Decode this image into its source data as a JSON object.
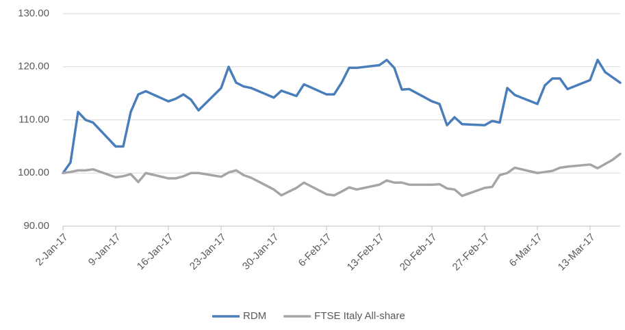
{
  "chart_data": {
    "type": "line",
    "x": [
      "2017-01-02",
      "2017-01-03",
      "2017-01-04",
      "2017-01-05",
      "2017-01-06",
      "2017-01-09",
      "2017-01-10",
      "2017-01-11",
      "2017-01-12",
      "2017-01-13",
      "2017-01-16",
      "2017-01-17",
      "2017-01-18",
      "2017-01-19",
      "2017-01-20",
      "2017-01-23",
      "2017-01-24",
      "2017-01-25",
      "2017-01-26",
      "2017-01-27",
      "2017-01-30",
      "2017-01-31",
      "2017-02-01",
      "2017-02-02",
      "2017-02-03",
      "2017-02-06",
      "2017-02-07",
      "2017-02-08",
      "2017-02-09",
      "2017-02-10",
      "2017-02-13",
      "2017-02-14",
      "2017-02-15",
      "2017-02-16",
      "2017-02-17",
      "2017-02-20",
      "2017-02-21",
      "2017-02-22",
      "2017-02-23",
      "2017-02-24",
      "2017-02-27",
      "2017-02-28",
      "2017-03-01",
      "2017-03-02",
      "2017-03-03",
      "2017-03-06",
      "2017-03-07",
      "2017-03-08",
      "2017-03-09",
      "2017-03-10",
      "2017-03-13",
      "2017-03-14",
      "2017-03-15",
      "2017-03-16",
      "2017-03-17"
    ],
    "series": [
      {
        "name": "RDM",
        "color": "#4a7ebb",
        "values": [
          100,
          102,
          111.5,
          110,
          109.5,
          105,
          105,
          111.5,
          114.8,
          115.4,
          113.5,
          114,
          114.8,
          113.8,
          111.8,
          116,
          120,
          117,
          116.3,
          116,
          114.2,
          115.5,
          115,
          114.5,
          116.7,
          114.8,
          114.8,
          117,
          119.8,
          119.8,
          120.3,
          121.3,
          119.8,
          115.7,
          115.8,
          113.5,
          113,
          109,
          110.5,
          109.2,
          109,
          109.8,
          109.5,
          116,
          114.7,
          113,
          116.5,
          117.8,
          117.8,
          115.8,
          117.5,
          121.3,
          119,
          118,
          117
        ]
      },
      {
        "name": "FTSE Italy All-share",
        "color": "#a5a5a5",
        "values": [
          100,
          100.2,
          100.5,
          100.5,
          100.7,
          99.2,
          99.4,
          99.8,
          98.3,
          100,
          99,
          99,
          99.4,
          100,
          100,
          99.3,
          100.1,
          100.5,
          99.6,
          99.1,
          96.9,
          95.8,
          96.5,
          97.2,
          98.2,
          96,
          95.8,
          96.5,
          97.3,
          96.9,
          97.8,
          98.6,
          98.2,
          98.2,
          97.8,
          97.8,
          97.9,
          97.1,
          96.9,
          95.7,
          97.2,
          97.4,
          99.6,
          100,
          101,
          100,
          100.2,
          100.4,
          101,
          101.2,
          101.6,
          100.9,
          101.7,
          102.5,
          103.6
        ]
      }
    ],
    "xlim": [
      "2017-01-02",
      "2017-03-17"
    ],
    "xticks": [
      {
        "value": "2017-01-02",
        "label": "2-Jan-17"
      },
      {
        "value": "2017-01-09",
        "label": "9-Jan-17"
      },
      {
        "value": "2017-01-16",
        "label": "16-Jan-17"
      },
      {
        "value": "2017-01-23",
        "label": "23-Jan-17"
      },
      {
        "value": "2017-01-30",
        "label": "30-Jan-17"
      },
      {
        "value": "2017-02-06",
        "label": "6-Feb-17"
      },
      {
        "value": "2017-02-13",
        "label": "13-Feb-17"
      },
      {
        "value": "2017-02-20",
        "label": "20-Feb-17"
      },
      {
        "value": "2017-02-27",
        "label": "27-Feb-17"
      },
      {
        "value": "2017-03-06",
        "label": "6-Mar-17"
      },
      {
        "value": "2017-03-13",
        "label": "13-Mar-17"
      }
    ],
    "ylim": [
      90,
      130
    ],
    "yticks": [
      {
        "value": 90,
        "label": "90.00"
      },
      {
        "value": 100,
        "label": "100.00"
      },
      {
        "value": 110,
        "label": "110.00"
      },
      {
        "value": 120,
        "label": "120.00"
      },
      {
        "value": 130,
        "label": "130.00"
      }
    ],
    "grid": true,
    "legend": "bottom"
  }
}
